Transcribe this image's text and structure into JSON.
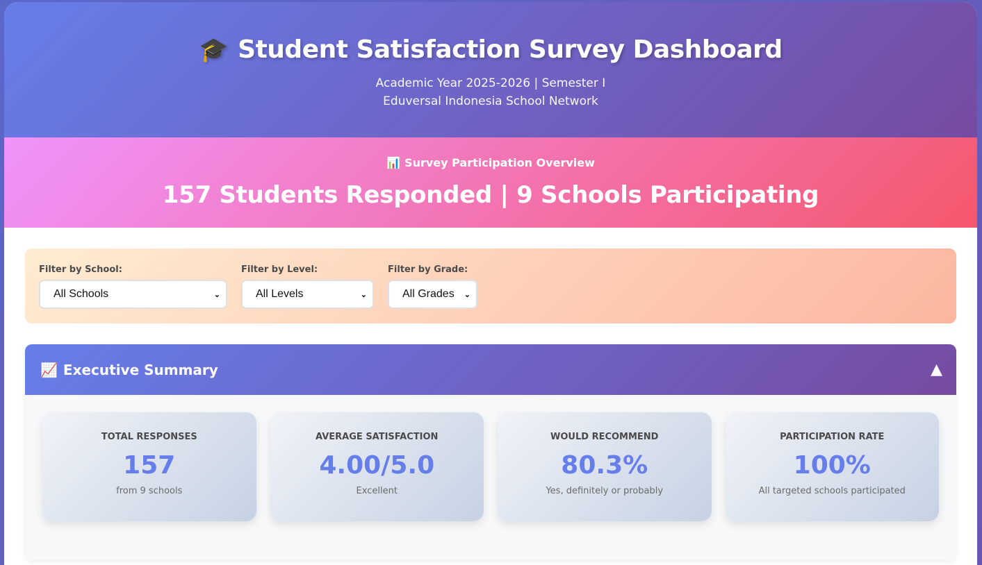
{
  "header": {
    "icon": "🎓",
    "title": "Student Satisfaction Survey Dashboard",
    "subtitle_line1": "Academic Year 2025-2026 | Semester I",
    "subtitle_line2": "Eduversal Indonesia School Network"
  },
  "banner": {
    "icon": "📊",
    "label": "Survey Participation Overview",
    "headline": "157 Students Responded | 9 Schools Participating"
  },
  "filters": {
    "school": {
      "label": "Filter by School:",
      "selected": "All Schools"
    },
    "level": {
      "label": "Filter by Level:",
      "selected": "All Levels"
    },
    "grade": {
      "label": "Filter by Grade:",
      "selected": "All Grades"
    }
  },
  "executive_summary": {
    "icon": "📈",
    "title": "Executive Summary",
    "toggle": "▲",
    "cards": [
      {
        "title": "TOTAL RESPONSES",
        "value": "157",
        "sub": "from 9 schools"
      },
      {
        "title": "AVERAGE SATISFACTION",
        "value": "4.00/5.0",
        "sub": "Excellent"
      },
      {
        "title": "WOULD RECOMMEND",
        "value": "80.3%",
        "sub": "Yes, definitely or probably"
      },
      {
        "title": "PARTICIPATION RATE",
        "value": "100%",
        "sub": "All targeted schools participated"
      }
    ]
  },
  "colors": {
    "header_gradient": [
      "#667eea",
      "#764ba2"
    ],
    "banner_gradient": [
      "#f093fb",
      "#f5576c"
    ],
    "filter_gradient": [
      "#ffecd2",
      "#fcb69f"
    ],
    "accent_value": "#667eea"
  }
}
